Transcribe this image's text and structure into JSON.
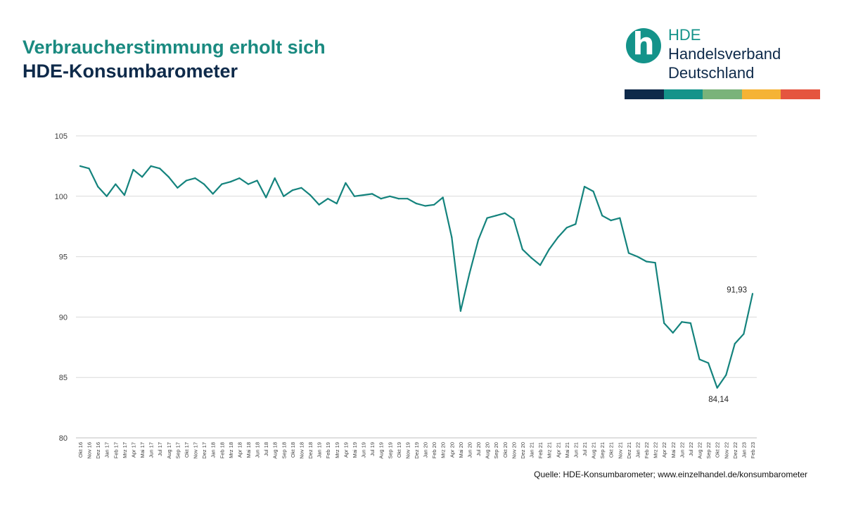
{
  "header": {
    "title_line1": "Verbraucherstimmung erholt sich",
    "title_line2": "HDE-Konsumbarometer"
  },
  "logo": {
    "mark": "h",
    "abbr": "HDE",
    "line2": "Handelsverband",
    "line3": "Deutschland",
    "bar_colors": [
      "#0e2a4a",
      "#14938a",
      "#7ab37a",
      "#f5b335",
      "#e5553f"
    ]
  },
  "source": "Quelle: HDE-Konsumbarometer; www.einzelhandel.de/konsumbarometer",
  "chart_data": {
    "type": "line",
    "title": "",
    "xlabel": "",
    "ylabel": "",
    "ylim": [
      80,
      105
    ],
    "yticks": [
      80,
      85,
      90,
      95,
      100,
      105
    ],
    "grid": true,
    "line_color": "#14837d",
    "categories": [
      "Okt 16",
      "Nov 16",
      "Dez 16",
      "Jan 17",
      "Feb 17",
      "Mrz 17",
      "Apr 17",
      "Mai 17",
      "Jun 17",
      "Jul 17",
      "Aug 17",
      "Sep 17",
      "Okt 17",
      "Nov 17",
      "Dez 17",
      "Jan 18",
      "Feb 18",
      "Mrz 18",
      "Apr 18",
      "Mai 18",
      "Jun 18",
      "Jul 18",
      "Aug 18",
      "Sep 18",
      "Okt 18",
      "Nov 18",
      "Dez 18",
      "Jan 19",
      "Feb 19",
      "Mrz 19",
      "Apr 19",
      "Mai 19",
      "Jun 19",
      "Jul 19",
      "Aug 19",
      "Sep 19",
      "Okt 19",
      "Nov 19",
      "Dez 19",
      "Jan 20",
      "Feb 20",
      "Mrz 20",
      "Apr 20",
      "Mai 20",
      "Jun 20",
      "Jul 20",
      "Aug 20",
      "Sep 20",
      "Okt 20",
      "Nov 20",
      "Dez 20",
      "Jan 21",
      "Feb 21",
      "Mrz 21",
      "Apr 21",
      "Mai 21",
      "Jun 21",
      "Jul 21",
      "Aug 21",
      "Sep 21",
      "Okt 21",
      "Nov 21",
      "Dez 21",
      "Jan 22",
      "Feb 22",
      "Mrz 22",
      "Apr 22",
      "Mai 22",
      "Jun 22",
      "Jul 22",
      "Aug 22",
      "Sep 22",
      "Okt 22",
      "Nov 22",
      "Dez 22",
      "Jan 23",
      "Feb 23"
    ],
    "values": [
      102.5,
      102.3,
      100.8,
      100.0,
      101.0,
      100.1,
      102.2,
      101.6,
      102.5,
      102.3,
      101.6,
      100.7,
      101.3,
      101.5,
      101.0,
      100.2,
      101.0,
      101.2,
      101.5,
      101.0,
      101.3,
      99.9,
      101.5,
      100.0,
      100.5,
      100.7,
      100.1,
      99.3,
      99.8,
      99.4,
      101.1,
      100.0,
      100.1,
      100.2,
      99.8,
      100.0,
      99.8,
      99.8,
      99.4,
      99.2,
      99.3,
      99.9,
      96.6,
      90.5,
      93.6,
      96.4,
      98.2,
      98.4,
      98.6,
      98.1,
      95.6,
      94.9,
      94.3,
      95.6,
      96.6,
      97.4,
      97.7,
      100.8,
      100.4,
      98.4,
      98.0,
      98.2,
      95.3,
      95.0,
      94.6,
      94.5,
      89.5,
      88.7,
      89.6,
      89.5,
      86.5,
      86.2,
      84.14,
      85.2,
      87.8,
      88.6,
      91.93
    ],
    "annotations": [
      {
        "index": 72,
        "text": "84,14",
        "position": "below"
      },
      {
        "index": 76,
        "text": "91,93",
        "position": "left-above"
      }
    ]
  }
}
